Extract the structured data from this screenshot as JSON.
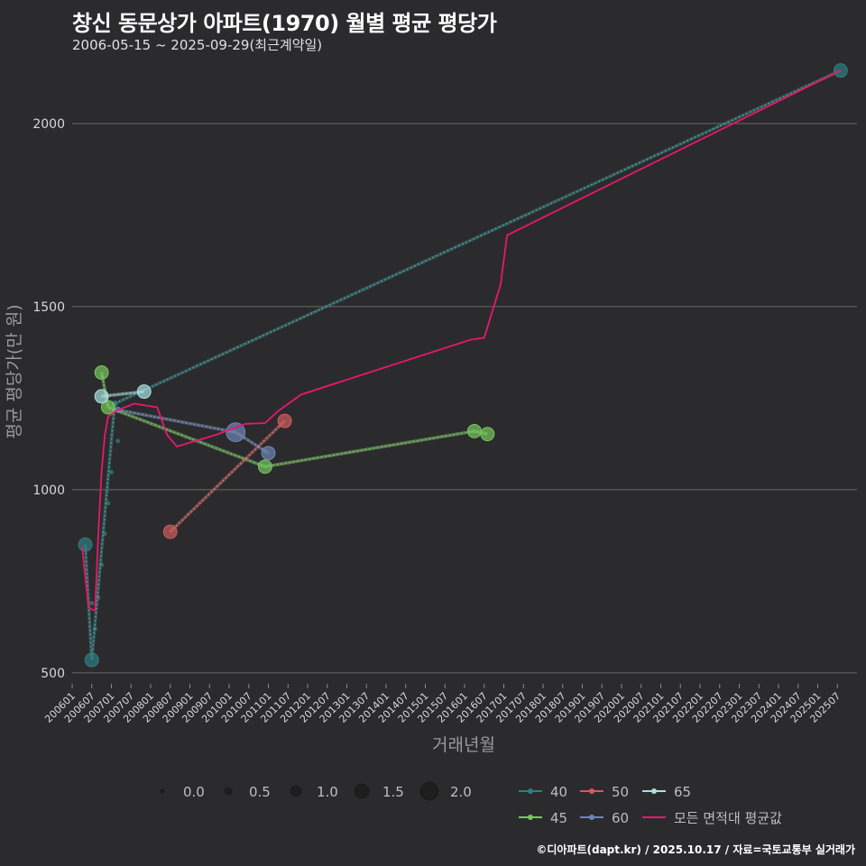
{
  "chart_data": {
    "type": "line+scatter",
    "title": "창신 동문상가 아파트(1970) 월별 평균 평당가",
    "subtitle": "2006-05-15 ~ 2025-09-29(최근계약일)",
    "xlabel": "거래년월",
    "ylabel": "평균 평당가(만 원)",
    "caption": "©디아파트(dapt.kr) / 2025.10.17 / 자료=국토교통부 실거래가",
    "x_range": [
      "2006-01",
      "2026-01"
    ],
    "ylim": [
      470,
      2165
    ],
    "y_ticks": [
      500,
      1000,
      1500,
      2000
    ],
    "x_ticks": [
      "200601",
      "200607",
      "200701",
      "200707",
      "200801",
      "200807",
      "200901",
      "200907",
      "201001",
      "201007",
      "201101",
      "201107",
      "201201",
      "201207",
      "201301",
      "201307",
      "201401",
      "201407",
      "201501",
      "201507",
      "201601",
      "201607",
      "201701",
      "201707",
      "201801",
      "201807",
      "201901",
      "201907",
      "202001",
      "202007",
      "202101",
      "202107",
      "202201",
      "202207",
      "202301",
      "202307",
      "202401",
      "202407",
      "202501",
      "202507"
    ],
    "series": [
      {
        "name": "40",
        "color": "#2f7f80",
        "points": [
          {
            "x": "2006-05",
            "y": 850,
            "size": 1.3
          },
          {
            "x": "2006-07",
            "y": 535,
            "size": 1.3
          },
          {
            "x": "2007-02",
            "y": 1235,
            "size": 0.2
          },
          {
            "x": "2025-08",
            "y": 2145,
            "size": 1.3
          }
        ]
      },
      {
        "name": "45",
        "color": "#77c760",
        "points": [
          {
            "x": "2006-10",
            "y": 1320,
            "size": 1.3
          },
          {
            "x": "2006-12",
            "y": 1225,
            "size": 1.3
          },
          {
            "x": "2010-12",
            "y": 1063,
            "size": 1.3
          },
          {
            "x": "2016-04",
            "y": 1160,
            "size": 1.3
          },
          {
            "x": "2016-08",
            "y": 1152,
            "size": 1.3
          }
        ]
      },
      {
        "name": "50",
        "color": "#cf5c5c",
        "points": [
          {
            "x": "2008-07",
            "y": 885,
            "size": 1.3
          },
          {
            "x": "2011-06",
            "y": 1188,
            "size": 1.3
          }
        ]
      },
      {
        "name": "60",
        "color": "#6f86b4",
        "points": [
          {
            "x": "2007-03",
            "y": 1218,
            "size": 0.2
          },
          {
            "x": "2010-03",
            "y": 1157,
            "size": 2.0
          },
          {
            "x": "2011-01",
            "y": 1100,
            "size": 1.3
          }
        ]
      },
      {
        "name": "65",
        "color": "#a9e0e0",
        "points": [
          {
            "x": "2006-10",
            "y": 1255,
            "size": 1.3
          },
          {
            "x": "2007-11",
            "y": 1268,
            "size": 1.3
          }
        ]
      },
      {
        "name": "모든 면적대 평균값",
        "color": "#e8186c",
        "points": [
          {
            "x": "2006-04",
            "y": 845
          },
          {
            "x": "2006-06",
            "y": 680
          },
          {
            "x": "2006-07",
            "y": 673
          },
          {
            "x": "2006-08",
            "y": 670
          },
          {
            "x": "2006-09",
            "y": 880
          },
          {
            "x": "2006-10",
            "y": 1050
          },
          {
            "x": "2006-11",
            "y": 1150
          },
          {
            "x": "2006-12",
            "y": 1200
          },
          {
            "x": "2007-03",
            "y": 1218
          },
          {
            "x": "2007-08",
            "y": 1235
          },
          {
            "x": "2008-03",
            "y": 1225
          },
          {
            "x": "2008-06",
            "y": 1150
          },
          {
            "x": "2008-09",
            "y": 1118
          },
          {
            "x": "2009-09",
            "y": 1150
          },
          {
            "x": "2010-06",
            "y": 1180
          },
          {
            "x": "2010-12",
            "y": 1182
          },
          {
            "x": "2011-04",
            "y": 1215
          },
          {
            "x": "2011-11",
            "y": 1260
          },
          {
            "x": "2016-03",
            "y": 1410
          },
          {
            "x": "2016-07",
            "y": 1415
          },
          {
            "x": "2016-12",
            "y": 1560
          },
          {
            "x": "2017-02",
            "y": 1695
          },
          {
            "x": "2025-08",
            "y": 2145
          }
        ]
      }
    ],
    "trace_points": [
      {
        "x": "2006-07",
        "y": 690
      },
      {
        "x": "2006-08",
        "y": 620
      },
      {
        "x": "2006-09",
        "y": 705
      },
      {
        "x": "2006-10",
        "y": 795
      },
      {
        "x": "2006-11",
        "y": 880
      },
      {
        "x": "2006-12",
        "y": 963
      },
      {
        "x": "2007-01",
        "y": 1048
      },
      {
        "x": "2007-03",
        "y": 1133
      }
    ],
    "size_legend": {
      "values": [
        0.0,
        0.5,
        1.0,
        1.5,
        2.0
      ],
      "labels": [
        "0.0",
        "0.5",
        "1.0",
        "1.5",
        "2.0"
      ]
    },
    "color_legend": [
      "40",
      "50",
      "65",
      "45",
      "60",
      "모든 면적대 평균값"
    ]
  }
}
